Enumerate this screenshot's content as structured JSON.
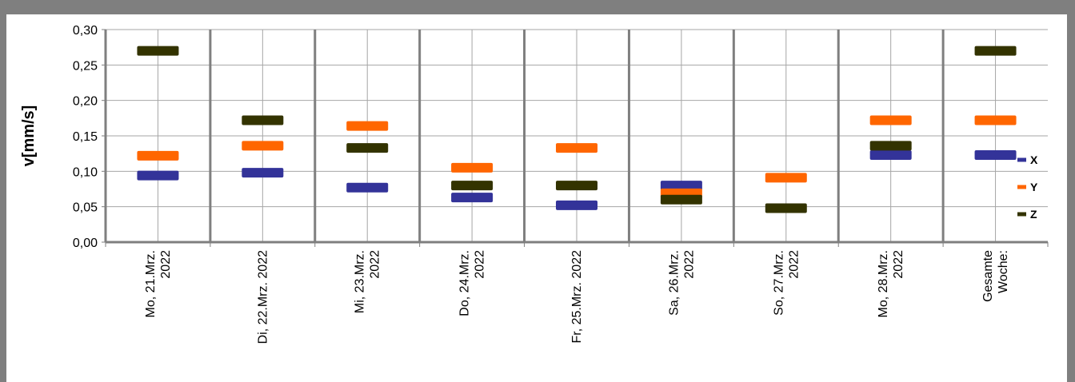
{
  "chart_data": {
    "type": "scatter",
    "marker": "dash",
    "ylabel": "v[mm/s]",
    "ylim": [
      0,
      0.3
    ],
    "yticks": [
      "0,00",
      "0,05",
      "0,10",
      "0,15",
      "0,20",
      "0,25",
      "0,30"
    ],
    "grid": true,
    "legend_placement": "right",
    "categories": [
      [
        "Mo, 21.Mrz.",
        "2022"
      ],
      [
        "Di, 22.Mrz. 2022"
      ],
      [
        "Mi, 23.Mrz.",
        "2022"
      ],
      [
        "Do, 24.Mrz.",
        "2022"
      ],
      [
        "Fr, 25.Mrz. 2022"
      ],
      [
        "Sa, 26.Mrz.",
        "2022"
      ],
      [
        "So, 27.Mrz.",
        "2022"
      ],
      [
        "Mo, 28.Mrz.",
        "2022"
      ],
      [
        "Gesamte",
        "Woche:"
      ]
    ],
    "series": [
      {
        "name": "X",
        "color": "#333399",
        "values": [
          0.094,
          0.098,
          0.077,
          0.063,
          0.052,
          0.08,
          null,
          0.123,
          0.123
        ]
      },
      {
        "name": "Y",
        "color": "#ff6600",
        "values": [
          0.122,
          0.136,
          0.164,
          0.105,
          0.133,
          0.069,
          0.091,
          0.172,
          0.172
        ]
      },
      {
        "name": "Z",
        "color": "#333300",
        "values": [
          0.27,
          0.172,
          0.133,
          0.08,
          0.08,
          0.06,
          0.048,
          0.136,
          0.27
        ]
      }
    ]
  }
}
